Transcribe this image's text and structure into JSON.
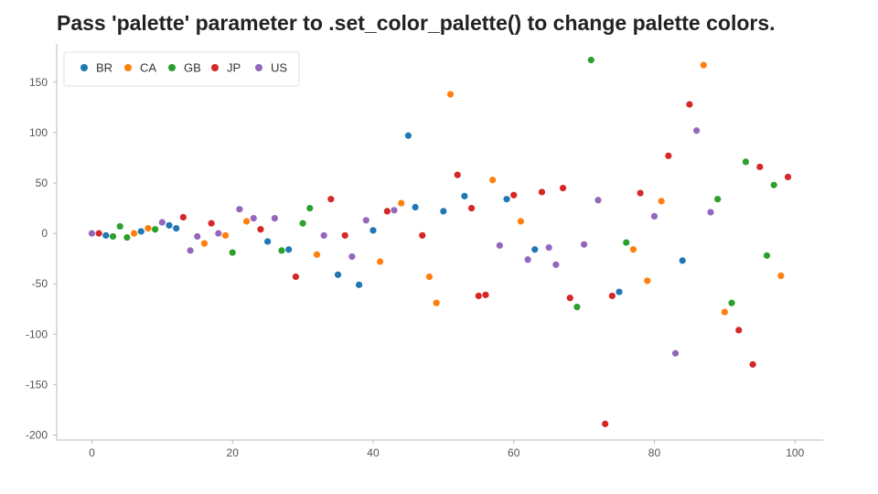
{
  "chart_data": {
    "type": "scatter",
    "title": "Pass 'palette' parameter to .set_color_palette() to change palette colors.",
    "xlabel": "",
    "ylabel": "",
    "xlim": [
      -5,
      104
    ],
    "ylim": [
      -205,
      188
    ],
    "xticks": [
      0,
      20,
      40,
      60,
      80,
      100
    ],
    "yticks": [
      150,
      100,
      50,
      0,
      -50,
      -100,
      -150,
      -200
    ],
    "grid": false,
    "legend_position": "top-left",
    "series": [
      {
        "name": "BR",
        "color": "#1f77b4",
        "points": [
          [
            2,
            -2
          ],
          [
            7,
            2
          ],
          [
            11,
            8
          ],
          [
            12,
            5
          ],
          [
            25,
            -8
          ],
          [
            28,
            -16
          ],
          [
            35,
            -41
          ],
          [
            38,
            -51
          ],
          [
            40,
            3
          ],
          [
            45,
            97
          ],
          [
            46,
            26
          ],
          [
            50,
            22
          ],
          [
            53,
            37
          ],
          [
            59,
            34
          ],
          [
            63,
            -16
          ],
          [
            75,
            -58
          ],
          [
            84,
            -27
          ]
        ]
      },
      {
        "name": "CA",
        "color": "#ff7f0e",
        "points": [
          [
            6,
            0
          ],
          [
            8,
            5
          ],
          [
            16,
            -10
          ],
          [
            19,
            -2
          ],
          [
            22,
            12
          ],
          [
            32,
            -21
          ],
          [
            41,
            -28
          ],
          [
            44,
            30
          ],
          [
            48,
            -43
          ],
          [
            49,
            -69
          ],
          [
            51,
            138
          ],
          [
            57,
            53
          ],
          [
            61,
            12
          ],
          [
            77,
            -16
          ],
          [
            79,
            -47
          ],
          [
            81,
            32
          ],
          [
            87,
            167
          ],
          [
            90,
            -78
          ],
          [
            98,
            -42
          ]
        ]
      },
      {
        "name": "GB",
        "color": "#2ca02c",
        "points": [
          [
            3,
            -3
          ],
          [
            4,
            7
          ],
          [
            5,
            -4
          ],
          [
            9,
            4
          ],
          [
            20,
            -19
          ],
          [
            27,
            -17
          ],
          [
            30,
            10
          ],
          [
            31,
            25
          ],
          [
            69,
            -73
          ],
          [
            71,
            172
          ],
          [
            76,
            -9
          ],
          [
            89,
            34
          ],
          [
            91,
            -69
          ],
          [
            93,
            71
          ],
          [
            96,
            -22
          ],
          [
            97,
            48
          ]
        ]
      },
      {
        "name": "JP",
        "color": "#d62728",
        "points": [
          [
            1,
            0
          ],
          [
            13,
            16
          ],
          [
            17,
            10
          ],
          [
            24,
            4
          ],
          [
            29,
            -43
          ],
          [
            34,
            34
          ],
          [
            36,
            -2
          ],
          [
            42,
            22
          ],
          [
            47,
            -2
          ],
          [
            52,
            58
          ],
          [
            54,
            25
          ],
          [
            55,
            -62
          ],
          [
            56,
            -61
          ],
          [
            60,
            38
          ],
          [
            64,
            41
          ],
          [
            67,
            45
          ],
          [
            68,
            -64
          ],
          [
            73,
            -189
          ],
          [
            74,
            -62
          ],
          [
            78,
            40
          ],
          [
            82,
            77
          ],
          [
            85,
            128
          ],
          [
            92,
            -96
          ],
          [
            94,
            -130
          ],
          [
            95,
            66
          ],
          [
            99,
            56
          ]
        ]
      },
      {
        "name": "US",
        "color": "#9467bd",
        "points": [
          [
            0,
            0
          ],
          [
            10,
            11
          ],
          [
            14,
            -17
          ],
          [
            15,
            -3
          ],
          [
            18,
            0
          ],
          [
            21,
            24
          ],
          [
            23,
            15
          ],
          [
            26,
            15
          ],
          [
            33,
            -2
          ],
          [
            37,
            -23
          ],
          [
            39,
            13
          ],
          [
            43,
            23
          ],
          [
            58,
            -12
          ],
          [
            62,
            -26
          ],
          [
            65,
            -14
          ],
          [
            66,
            -31
          ],
          [
            70,
            -11
          ],
          [
            72,
            33
          ],
          [
            80,
            17
          ],
          [
            83,
            -119
          ],
          [
            86,
            102
          ],
          [
            88,
            21
          ]
        ]
      }
    ]
  }
}
